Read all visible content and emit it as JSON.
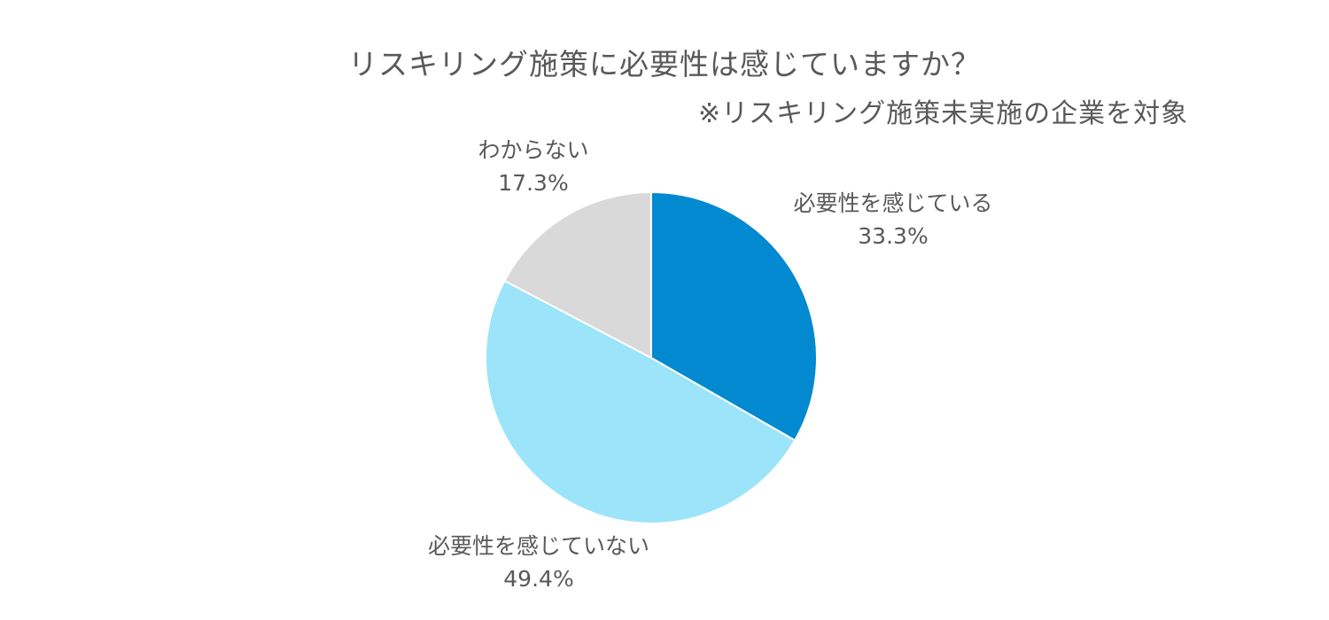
{
  "chart_data": {
    "type": "pie",
    "title": "リスキリング施策に必要性は感じていますか？",
    "subtitle": "※リスキリング施策未実施の企業を対象",
    "slices": [
      {
        "label": "必要性を感じている",
        "value": 33.3,
        "value_label": "33.3%",
        "color": "#0389D0"
      },
      {
        "label": "必要性を感じていない",
        "value": 49.4,
        "value_label": "49.4%",
        "color": "#9BE4FA"
      },
      {
        "label": "わからない",
        "value": 17.3,
        "value_label": "17.3%",
        "color": "#D9D9D9"
      }
    ],
    "start_angle": "12 o'clock",
    "direction": "clockwise",
    "legend": "none"
  }
}
